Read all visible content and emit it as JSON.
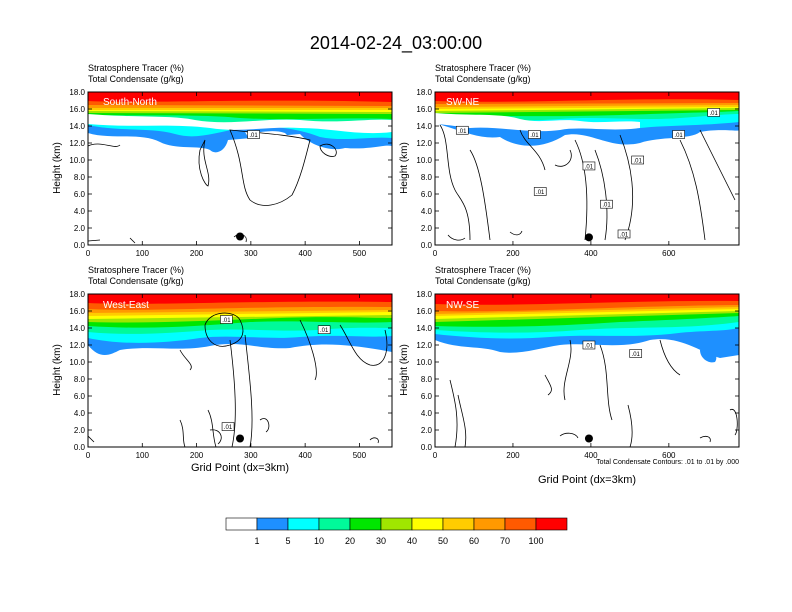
{
  "title": "2014-02-24_03:00:00",
  "colors": [
    "#ffffff",
    "#1e90ff",
    "#00ffff",
    "#00fa9a",
    "#00e600",
    "#a0e600",
    "#ffff00",
    "#ffcc00",
    "#ff9900",
    "#ff5a00",
    "#ff0000"
  ],
  "colorbar": {
    "levels": [
      "1",
      "5",
      "10",
      "20",
      "30",
      "40",
      "50",
      "60",
      "70",
      "100"
    ]
  },
  "contour_note": "Total Condensate Contours: .01 to .01 by .000",
  "marker_label": ".01",
  "chart_data": [
    {
      "type": "heatmap",
      "panel": "South-North",
      "label1": "Stratosphere Tracer   (%)",
      "label2": "Total Condensate   (g/kg)",
      "ylabel": "Height (km)",
      "xlabel": "",
      "xlim": [
        0,
        560
      ],
      "xticks": [
        0,
        100,
        200,
        300,
        400,
        500
      ],
      "ylim": [
        0,
        18
      ],
      "yticks": [
        "0.0",
        "2.0",
        "4.0",
        "6.0",
        "8.0",
        "10.0",
        "12.0",
        "14.0",
        "16.0",
        "18.0"
      ],
      "station_point": [
        280,
        1.0
      ],
      "contour_labels": [
        [
          305,
          13.0
        ]
      ]
    },
    {
      "type": "heatmap",
      "panel": "SW-NE",
      "label1": "Stratosphere Tracer   (%)",
      "label2": "Total Condensate   (g/kg)",
      "ylabel": "Height (km)",
      "xlabel": "",
      "xlim": [
        0,
        780
      ],
      "xticks": [
        0,
        200,
        400,
        600
      ],
      "ylim": [
        0,
        18
      ],
      "yticks": [
        "0.0",
        "2.0",
        "4.0",
        "6.0",
        "8.0",
        "10.0",
        "12.0",
        "14.0",
        "16.0",
        "18.0"
      ],
      "station_point": [
        395,
        0.9
      ],
      "contour_labels": [
        [
          70,
          13.5
        ],
        [
          255,
          13.0
        ],
        [
          625,
          13.0
        ],
        [
          395,
          9.3
        ],
        [
          520,
          10.0
        ],
        [
          270,
          6.3
        ],
        [
          440,
          4.8
        ],
        [
          485,
          1.3
        ],
        [
          715,
          15.6
        ]
      ]
    },
    {
      "type": "heatmap",
      "panel": "West-East",
      "label1": "Stratosphere Tracer   (%)",
      "label2": "Total Condensate   (g/kg)",
      "ylabel": "Height (km)",
      "xlabel": "Grid Point (dx=3km)",
      "xlim": [
        0,
        560
      ],
      "xticks": [
        0,
        100,
        200,
        300,
        400,
        500
      ],
      "ylim": [
        0,
        18
      ],
      "yticks": [
        "0.0",
        "2.0",
        "4.0",
        "6.0",
        "8.0",
        "10.0",
        "12.0",
        "14.0",
        "16.0",
        "18.0"
      ],
      "station_point": [
        280,
        1.0
      ],
      "contour_labels": [
        [
          255,
          15.0
        ],
        [
          435,
          13.8
        ],
        [
          258,
          2.4
        ]
      ]
    },
    {
      "type": "heatmap",
      "panel": "NW-SE",
      "label1": "Stratosphere Tracer   (%)",
      "label2": "Total Condensate   (g/kg)",
      "ylabel": "Height (km)",
      "xlabel": "Grid Point (dx=3km)",
      "xlim": [
        0,
        780
      ],
      "xticks": [
        0,
        200,
        400,
        600
      ],
      "ylim": [
        0,
        18
      ],
      "yticks": [
        "0.0",
        "2.0",
        "4.0",
        "6.0",
        "8.0",
        "10.0",
        "12.0",
        "14.0",
        "16.0",
        "18.0"
      ],
      "station_point": [
        395,
        1.0
      ],
      "contour_labels": [
        [
          395,
          12.0
        ],
        [
          515,
          11.0
        ]
      ]
    }
  ]
}
